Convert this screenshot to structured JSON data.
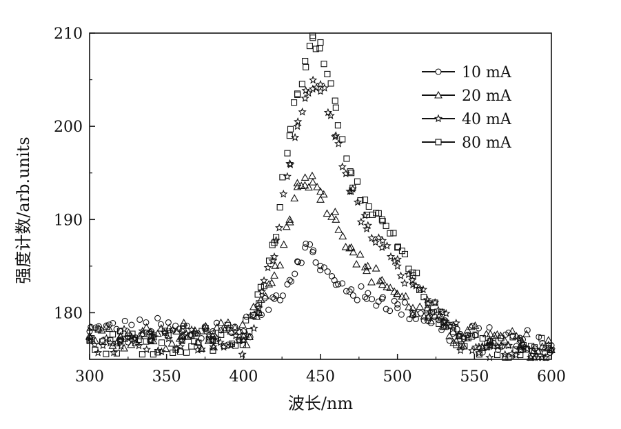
{
  "chart_data": {
    "type": "scatter",
    "xlabel": "波长/nm",
    "ylabel": "强度计数/arb.units",
    "xlim": [
      300,
      600
    ],
    "ylim": [
      175,
      210
    ],
    "xticks": [
      300,
      350,
      400,
      450,
      500,
      550,
      600
    ],
    "yticks": [
      180,
      190,
      200,
      210
    ],
    "grid": false,
    "legend_position": "top-right",
    "series": [
      {
        "name": "10 mA",
        "marker": "circle",
        "x": [
          300,
          320,
          340,
          360,
          380,
          400,
          410,
          420,
          430,
          435,
          440,
          445,
          450,
          460,
          470,
          480,
          490,
          500,
          510,
          520,
          530,
          540,
          560,
          580,
          600
        ],
        "y": [
          178,
          178,
          178,
          178,
          178,
          178,
          180,
          181.5,
          183.5,
          185.5,
          187,
          186.5,
          185,
          183,
          182.5,
          181.5,
          181.5,
          180.5,
          180,
          179.5,
          178.5,
          177.5,
          177,
          177,
          176.5
        ]
      },
      {
        "name": "20 mA",
        "marker": "triangle",
        "x": [
          300,
          320,
          340,
          360,
          380,
          400,
          410,
          420,
          430,
          435,
          440,
          445,
          450,
          460,
          470,
          480,
          490,
          500,
          510,
          520,
          530,
          540,
          560,
          580,
          600
        ],
        "y": [
          177.5,
          177.5,
          177.5,
          177.5,
          177.5,
          177.5,
          180,
          184,
          190,
          193.5,
          194.5,
          194,
          193,
          190,
          187,
          184.5,
          183.5,
          182,
          180.5,
          179.5,
          178.5,
          177.5,
          177,
          176.5,
          176
        ]
      },
      {
        "name": "40 mA",
        "marker": "star",
        "x": [
          300,
          320,
          340,
          360,
          380,
          400,
          410,
          420,
          430,
          435,
          440,
          445,
          450,
          460,
          470,
          480,
          490,
          500,
          510,
          520,
          530,
          540,
          560,
          580,
          600
        ],
        "y": [
          177,
          177,
          177,
          177,
          177,
          177,
          180.5,
          186,
          196,
          200,
          203,
          204,
          204.5,
          199,
          193,
          189,
          187,
          185,
          183,
          181,
          179,
          177.5,
          176.5,
          176,
          176
        ]
      },
      {
        "name": "80 mA",
        "marker": "square",
        "x": [
          300,
          320,
          340,
          360,
          380,
          400,
          410,
          420,
          430,
          435,
          440,
          445,
          450,
          460,
          470,
          480,
          490,
          500,
          510,
          520,
          530,
          540,
          560,
          580,
          600
        ],
        "y": [
          177,
          177,
          177,
          177,
          177,
          177.5,
          181,
          187.5,
          199,
          203.5,
          207,
          209.5,
          209,
          202,
          195,
          190.5,
          190,
          187,
          184,
          181,
          179,
          177.5,
          176.5,
          176,
          176
        ]
      }
    ]
  }
}
